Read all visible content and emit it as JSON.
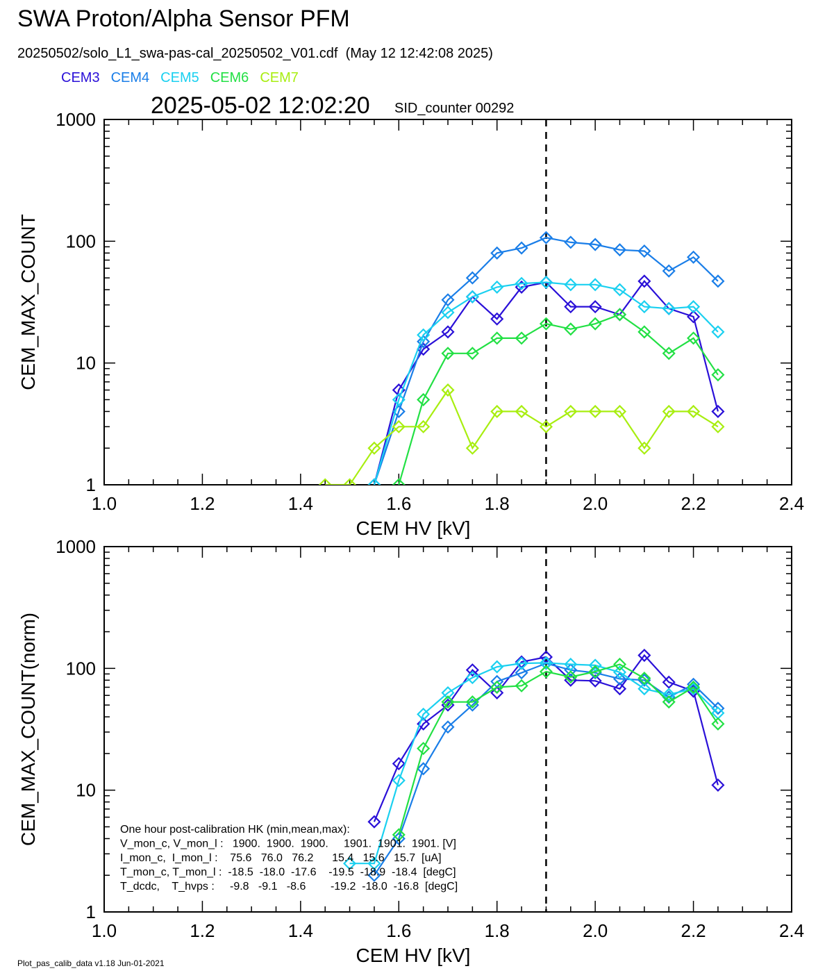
{
  "title": "SWA Proton/Alpha Sensor PFM",
  "file_line": "20250502/solo_L1_swa-pas-cal_20250502_V01.cdf  (May 12 12:42:08 2025)",
  "timestamp": "2025-05-02 12:02:20",
  "sid_counter": "SID_counter 00292",
  "footer": "Plot_pas_calib_data v1.18 Jun-01-2021",
  "legend": [
    {
      "name": "CEM3",
      "color": "#2a10d8"
    },
    {
      "name": "CEM4",
      "color": "#1a7ee8"
    },
    {
      "name": "CEM5",
      "color": "#1ad0f0"
    },
    {
      "name": "CEM6",
      "color": "#22e044"
    },
    {
      "name": "CEM7",
      "color": "#a8ee10"
    }
  ],
  "hk_text": [
    "One hour post-calibration HK (min,mean,max):",
    "V_mon_c, V_mon_l :   1900.  1900.  1900.     1901.  1901.  1901. [V]",
    "I_mon_c,  I_mon_l :    75.6   76.0   76.2      15.4   15.6   15.7  [uA]",
    "T_mon_c, T_mon_l :  -18.5  -18.0  -17.6    -19.5  -18.9  -18.4  [degC]",
    "T_dcdc,    T_hvps :     -9.8   -9.1   -8.6        -19.2  -18.0  -16.8  [degC]"
  ],
  "chart_data": [
    {
      "type": "line",
      "xlabel": "CEM HV [kV]",
      "ylabel": "CEM_MAX_COUNT",
      "xlim": [
        1.0,
        2.4
      ],
      "ylim": [
        1,
        1000
      ],
      "y_scale": "log",
      "x_ticks": [
        "1.0",
        "1.2",
        "1.4",
        "1.6",
        "1.8",
        "2.0",
        "2.2",
        "2.4"
      ],
      "y_ticks": [
        "1",
        "10",
        "100",
        "1000"
      ],
      "reference_line_x": 1.9,
      "series": [
        {
          "name": "CEM3",
          "color": "#2a10d8",
          "x": [
            1.55,
            1.6,
            1.65,
            1.7,
            1.75,
            1.8,
            1.85,
            1.9,
            1.95,
            2.0,
            2.05,
            2.1,
            2.15,
            2.2,
            2.25
          ],
          "values": [
            1,
            6,
            13,
            18,
            35,
            23,
            42,
            46,
            29,
            29,
            25,
            47,
            28,
            24,
            4
          ]
        },
        {
          "name": "CEM4",
          "color": "#1a7ee8",
          "x": [
            1.55,
            1.6,
            1.65,
            1.7,
            1.75,
            1.8,
            1.85,
            1.9,
            1.95,
            2.0,
            2.05,
            2.1,
            2.15,
            2.2,
            2.25
          ],
          "values": [
            1,
            4,
            15,
            33,
            50,
            80,
            88,
            107,
            98,
            94,
            85,
            83,
            57,
            74,
            47
          ]
        },
        {
          "name": "CEM5",
          "color": "#1ad0f0",
          "x": [
            1.55,
            1.6,
            1.65,
            1.7,
            1.75,
            1.8,
            1.85,
            1.9,
            1.95,
            2.0,
            2.05,
            2.1,
            2.15,
            2.2,
            2.25
          ],
          "values": [
            1,
            5,
            17,
            26,
            35,
            42,
            45,
            46,
            44,
            44,
            40,
            29,
            28,
            29,
            18
          ]
        },
        {
          "name": "CEM6",
          "color": "#22e044",
          "x": [
            1.6,
            1.65,
            1.7,
            1.75,
            1.8,
            1.85,
            1.9,
            1.95,
            2.0,
            2.05,
            2.1,
            2.15,
            2.2,
            2.25
          ],
          "values": [
            1,
            5,
            12,
            12,
            16,
            16,
            21,
            19,
            21,
            25,
            18,
            12,
            16,
            8
          ]
        },
        {
          "name": "CEM7",
          "color": "#a8ee10",
          "x": [
            1.45,
            1.5,
            1.55,
            1.6,
            1.65,
            1.7,
            1.75,
            1.8,
            1.85,
            1.9,
            1.95,
            2.0,
            2.05,
            2.1,
            2.15,
            2.2,
            2.25
          ],
          "values": [
            1,
            1,
            2,
            3,
            3,
            6,
            2,
            4,
            4,
            3,
            4,
            4,
            4,
            2,
            4,
            4,
            3
          ]
        }
      ]
    },
    {
      "type": "line",
      "xlabel": "CEM HV [kV]",
      "ylabel": "CEM_MAX_COUNT(norm)",
      "xlim": [
        1.0,
        2.4
      ],
      "ylim": [
        1,
        1000
      ],
      "y_scale": "log",
      "x_ticks": [
        "1.0",
        "1.2",
        "1.4",
        "1.6",
        "1.8",
        "2.0",
        "2.2",
        "2.4"
      ],
      "y_ticks": [
        "1",
        "10",
        "100",
        "1000"
      ],
      "reference_line_x": 1.9,
      "series": [
        {
          "name": "CEM3",
          "color": "#2a10d8",
          "x": [
            1.55,
            1.6,
            1.65,
            1.7,
            1.75,
            1.8,
            1.85,
            1.9,
            1.95,
            2.0,
            2.05,
            2.1,
            2.15,
            2.2,
            2.25
          ],
          "values": [
            5.5,
            16.5,
            35,
            50,
            97,
            63,
            113,
            124,
            80,
            79,
            68,
            128,
            77,
            65,
            11
          ]
        },
        {
          "name": "CEM4",
          "color": "#1a7ee8",
          "x": [
            1.55,
            1.6,
            1.65,
            1.7,
            1.75,
            1.8,
            1.85,
            1.9,
            1.95,
            2.0,
            2.05,
            2.1,
            2.15,
            2.2,
            2.25
          ],
          "values": [
            2,
            4,
            15,
            33,
            50,
            78,
            92,
            110,
            97,
            92,
            82,
            80,
            58,
            74,
            47
          ]
        },
        {
          "name": "CEM5",
          "color": "#1ad0f0",
          "x": [
            1.5,
            1.55,
            1.6,
            1.65,
            1.7,
            1.75,
            1.8,
            1.85,
            1.9,
            1.95,
            2.0,
            2.05,
            2.1,
            2.15,
            2.2,
            2.25
          ],
          "values": [
            2.5,
            2.5,
            12,
            42,
            63,
            84,
            103,
            110,
            111,
            108,
            106,
            93,
            68,
            61,
            68,
            43
          ]
        },
        {
          "name": "CEM6",
          "color": "#22e044",
          "x": [
            1.6,
            1.65,
            1.7,
            1.75,
            1.8,
            1.85,
            1.9,
            1.95,
            2.0,
            2.05,
            2.1,
            2.15,
            2.2,
            2.25
          ],
          "values": [
            4.3,
            22,
            53,
            53,
            70,
            72,
            94,
            85,
            94,
            108,
            83,
            53,
            70,
            35
          ]
        }
      ]
    }
  ]
}
